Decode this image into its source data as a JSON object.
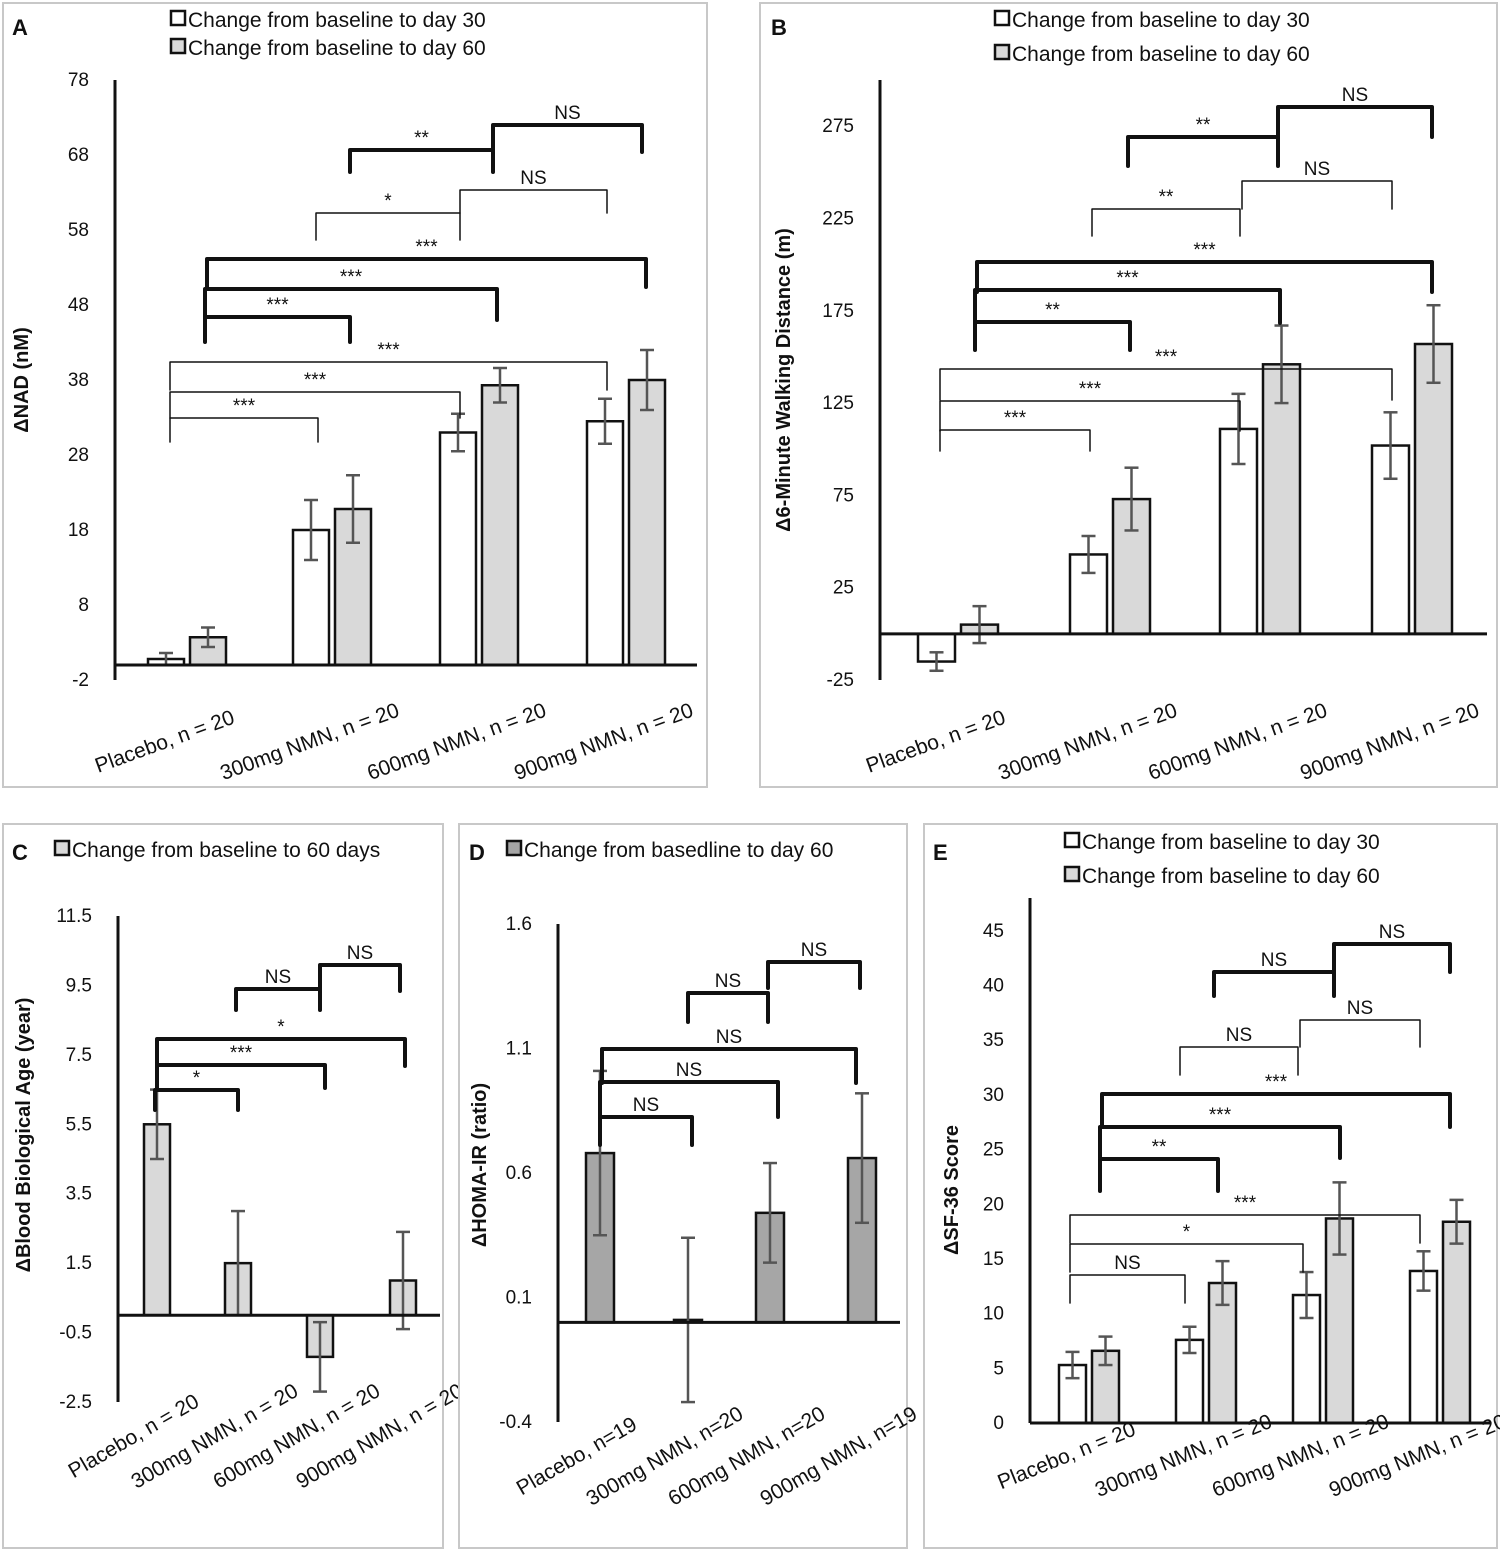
{
  "chart_data": [
    {
      "panel": "A",
      "type": "bar",
      "ylabel": "ΔNAD (nM)",
      "ylim": [
        -2,
        78
      ],
      "yticks": [
        -2,
        8,
        18,
        28,
        38,
        48,
        58,
        68,
        78
      ],
      "categories": [
        "Placebo, n = 20",
        "300mg NMN, n = 20",
        "600mg NMN, n = 20",
        "900mg NMN, n = 20"
      ],
      "series": [
        {
          "name": "Change from baseline to day 30",
          "color": "#ffffff",
          "values": [
            0.8,
            18,
            31,
            32.5
          ],
          "errors": [
            0.8,
            4,
            2.5,
            3
          ]
        },
        {
          "name": "Change from baseline to day 60",
          "color": "#d9d9d9",
          "values": [
            3.7,
            20.8,
            37.3,
            38
          ],
          "errors": [
            1.3,
            4.5,
            2.3,
            4
          ]
        }
      ],
      "comparisons": [
        {
          "label": "***",
          "style": "thin"
        },
        {
          "label": "***",
          "style": "thin"
        },
        {
          "label": "***",
          "style": "thin"
        },
        {
          "label": "***",
          "style": "bold"
        },
        {
          "label": "***",
          "style": "bold"
        },
        {
          "label": "***",
          "style": "bold"
        },
        {
          "label": "*",
          "style": "thin"
        },
        {
          "label": "NS",
          "style": "thin"
        },
        {
          "label": "**",
          "style": "bold"
        },
        {
          "label": "NS",
          "style": "bold"
        }
      ]
    },
    {
      "panel": "B",
      "type": "bar",
      "ylabel": "Δ6-Minute Walking Distance (m)",
      "ylim": [
        -25,
        300
      ],
      "yticks": [
        -25,
        25,
        75,
        125,
        175,
        225,
        275
      ],
      "categories": [
        "Placebo, n = 20",
        "300mg NMN, n = 20",
        "600mg NMN, n = 20",
        "900mg NMN, n = 20"
      ],
      "series": [
        {
          "name": "Change from baseline to day 30",
          "color": "#ffffff",
          "values": [
            -15,
            43,
            111,
            102
          ],
          "errors": [
            5,
            10,
            19,
            18
          ]
        },
        {
          "name": "Change from baseline to day 60",
          "color": "#d9d9d9",
          "values": [
            5,
            73,
            146,
            157
          ],
          "errors": [
            10,
            17,
            21,
            21
          ]
        }
      ],
      "comparisons": [
        {
          "label": "***",
          "style": "thin"
        },
        {
          "label": "***",
          "style": "thin"
        },
        {
          "label": "***",
          "style": "thin"
        },
        {
          "label": "**",
          "style": "bold"
        },
        {
          "label": "***",
          "style": "bold"
        },
        {
          "label": "***",
          "style": "bold"
        },
        {
          "label": "**",
          "style": "thin"
        },
        {
          "label": "NS",
          "style": "thin"
        },
        {
          "label": "**",
          "style": "bold"
        },
        {
          "label": "NS",
          "style": "bold"
        }
      ]
    },
    {
      "panel": "C",
      "type": "bar",
      "ylabel": "ΔBlood Biological Age (year)",
      "ylim": [
        -2.5,
        11.5
      ],
      "yticks": [
        -2.5,
        -0.5,
        1.5,
        3.5,
        5.5,
        7.5,
        9.5,
        11.5
      ],
      "categories": [
        "Placebo, n = 20",
        "300mg NMN, n = 20",
        "600mg NMN, n = 20",
        "900mg NMN, n = 20"
      ],
      "series": [
        {
          "name": "Change from baseline to 60 days",
          "color": "#d9d9d9",
          "values": [
            5.5,
            1.5,
            -1.2,
            1.0
          ],
          "errors": [
            1.0,
            1.5,
            1.0,
            1.4
          ]
        }
      ],
      "comparisons": [
        {
          "label": "*",
          "style": "bold"
        },
        {
          "label": "***",
          "style": "bold"
        },
        {
          "label": "*",
          "style": "bold"
        },
        {
          "label": "NS",
          "style": "bold"
        },
        {
          "label": "NS",
          "style": "bold"
        }
      ]
    },
    {
      "panel": "D",
      "type": "bar",
      "ylabel": "ΔHOMA-IR (ratio)",
      "ylim": [
        -0.4,
        1.6
      ],
      "yticks": [
        -0.4,
        0.1,
        0.6,
        1.1,
        1.6
      ],
      "categories": [
        "Placebo, n=19",
        "300mg NMN, n=20",
        "600mg NMN, n=20",
        "900mg NMN, n=19"
      ],
      "series": [
        {
          "name": "Change from basedline to day 60",
          "color": "#a6a6a6",
          "values": [
            0.68,
            0.01,
            0.44,
            0.66
          ],
          "errors": [
            0.33,
            0.33,
            0.2,
            0.26
          ]
        }
      ],
      "comparisons": [
        {
          "label": "NS",
          "style": "bold"
        },
        {
          "label": "NS",
          "style": "bold"
        },
        {
          "label": "NS",
          "style": "bold"
        },
        {
          "label": "NS",
          "style": "bold"
        },
        {
          "label": "NS",
          "style": "bold"
        }
      ]
    },
    {
      "panel": "E",
      "type": "bar",
      "ylabel": "ΔSF-36 Score",
      "ylim": [
        0,
        48
      ],
      "yticks": [
        0,
        5,
        10,
        15,
        20,
        25,
        30,
        35,
        40,
        45
      ],
      "categories": [
        "Placebo, n = 20",
        "300mg NMN, n = 20",
        "600mg NMN, n = 20",
        "900mg NMN, n = 20"
      ],
      "series": [
        {
          "name": "Change from baseline to day 30",
          "color": "#ffffff",
          "values": [
            5.3,
            7.6,
            11.7,
            13.9
          ],
          "errors": [
            1.2,
            1.2,
            2.1,
            1.8
          ]
        },
        {
          "name": "Change from baseline to day 60",
          "color": "#d9d9d9",
          "values": [
            6.6,
            12.8,
            18.7,
            18.4
          ],
          "errors": [
            1.3,
            2.0,
            3.3,
            2.0
          ]
        }
      ],
      "comparisons": [
        {
          "label": "NS",
          "style": "thin"
        },
        {
          "label": "*",
          "style": "thin"
        },
        {
          "label": "***",
          "style": "thin"
        },
        {
          "label": "**",
          "style": "bold"
        },
        {
          "label": "***",
          "style": "bold"
        },
        {
          "label": "***",
          "style": "bold"
        },
        {
          "label": "NS",
          "style": "thin"
        },
        {
          "label": "NS",
          "style": "thin"
        },
        {
          "label": "NS",
          "style": "bold"
        },
        {
          "label": "NS",
          "style": "bold"
        }
      ]
    }
  ]
}
